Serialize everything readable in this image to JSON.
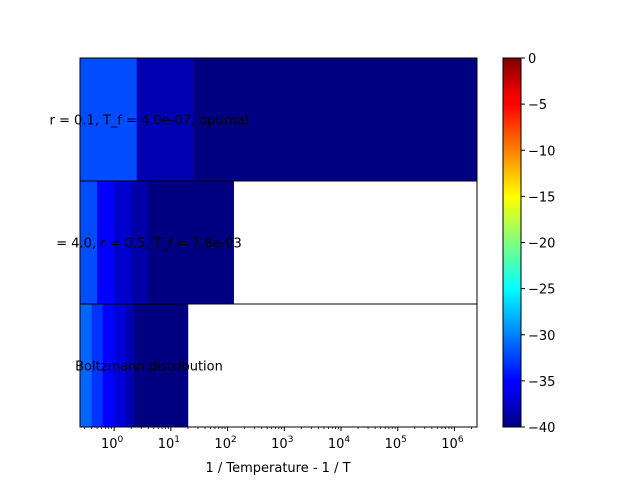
{
  "chart_data": {
    "type": "heatmap",
    "title": "",
    "xlabel": "1 / Temperature - 1 / T",
    "ylabel": "",
    "x_scale": "log",
    "xlim": [
      0.25,
      2500000
    ],
    "x_ticks": [
      {
        "value": 1,
        "base": "10",
        "exp": "0"
      },
      {
        "value": 10,
        "base": "10",
        "exp": "1"
      },
      {
        "value": 100,
        "base": "10",
        "exp": "2"
      },
      {
        "value": 1000,
        "base": "10",
        "exp": "3"
      },
      {
        "value": 10000,
        "base": "10",
        "exp": "4"
      },
      {
        "value": 100000,
        "base": "10",
        "exp": "5"
      },
      {
        "value": 1000000,
        "base": "10",
        "exp": "6"
      }
    ],
    "colormap": "jet",
    "colorbar": {
      "min": -40,
      "max": 0,
      "ticks": [
        "0",
        "−5",
        "−10",
        "−15",
        "−20",
        "−25",
        "−30",
        "−35",
        "−40"
      ],
      "tick_values": [
        0,
        -5,
        -10,
        -15,
        -20,
        -25,
        -30,
        -35,
        -40
      ]
    },
    "rows": [
      {
        "label": "r = 0.1, T_f = 4.0e-07, optimal",
        "cells": [
          {
            "x0": 0.25,
            "x1": 2.5,
            "value": -32
          },
          {
            "x0": 2.5,
            "x1": 25,
            "value": -38
          },
          {
            "x0": 25,
            "x1": 2500000,
            "value": -40
          }
        ]
      },
      {
        "label": "= 4.0, r = 0.5, T_f = 7.8e-03",
        "cells": [
          {
            "x0": 0.25,
            "x1": 0.5,
            "value": -32
          },
          {
            "x0": 0.5,
            "x1": 1,
            "value": -35
          },
          {
            "x0": 1,
            "x1": 2,
            "value": -37
          },
          {
            "x0": 2,
            "x1": 4,
            "value": -38.5
          },
          {
            "x0": 4,
            "x1": 128,
            "value": -40
          }
        ]
      },
      {
        "label": "Boltzmann distribution",
        "cells": [
          {
            "x0": 0.25,
            "x1": 0.4,
            "value": -31
          },
          {
            "x0": 0.4,
            "x1": 0.63,
            "value": -33
          },
          {
            "x0": 0.63,
            "x1": 1.0,
            "value": -35
          },
          {
            "x0": 1.0,
            "x1": 1.6,
            "value": -36.5
          },
          {
            "x0": 1.6,
            "x1": 2.2,
            "value": -38
          },
          {
            "x0": 2.2,
            "x1": 20,
            "value": -40
          }
        ]
      }
    ]
  }
}
